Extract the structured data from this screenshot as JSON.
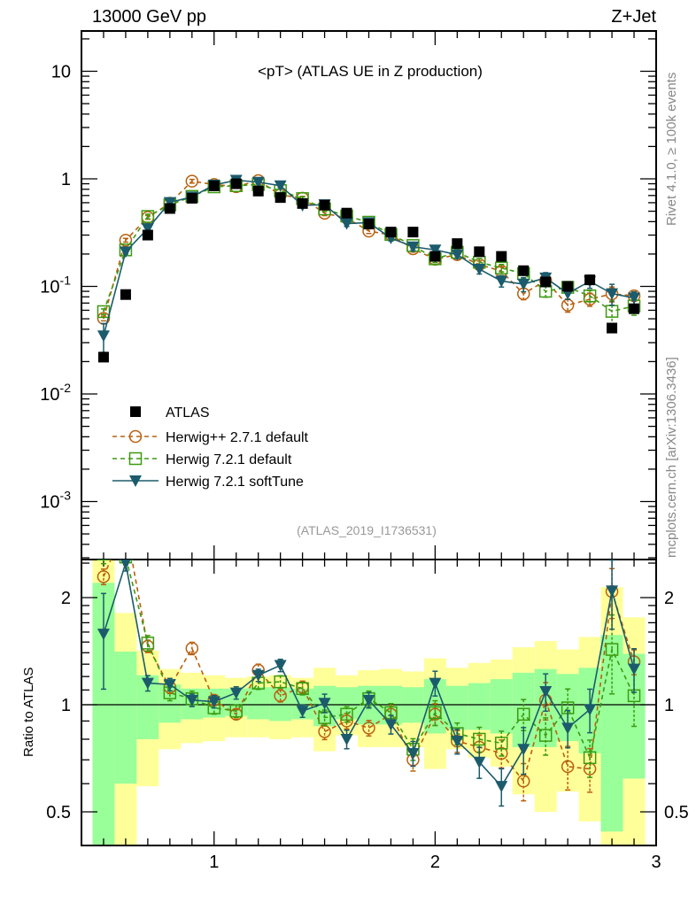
{
  "header": {
    "left": "13000 GeV pp",
    "right": "Z+Jet"
  },
  "side_labels": {
    "rivet": "Rivet 4.1.0, ≥ 100k events",
    "mcplots": "mcplots.cern.ch [arXiv:1306.3436]"
  },
  "colors": {
    "atlas": "#000000",
    "herwigpp": "#b8600f",
    "herwig721": "#3c9a10",
    "softtune": "#1b5b6c",
    "band_total": "#ffff99",
    "band_stat": "#99ff99"
  },
  "chart_data": {
    "type": "scatter",
    "title": "<pT> (ATLAS UE in Z production)",
    "analysis_tag": "(ATLAS_2019_I1736531)",
    "xlabel": "",
    "ylabel": "",
    "ratio_ylabel": "Ratio to ATLAS",
    "xlim": [
      0.4,
      3.0
    ],
    "ylim": [
      0.0003,
      24
    ],
    "ratio_ylim": [
      0.4,
      2.56
    ],
    "yscale": "log",
    "x_ticks": [
      "1",
      "2",
      "3"
    ],
    "y_ticks": [
      "10",
      "1",
      "10^-1",
      "10^-2",
      "10^-3"
    ],
    "ratio_ticks": [
      "2",
      "1",
      "0.5"
    ],
    "legend_position": "middle-left",
    "x": [
      0.5,
      0.6,
      0.7,
      0.8,
      0.9,
      1.0,
      1.1,
      1.2,
      1.3,
      1.4,
      1.5,
      1.6,
      1.7,
      1.8,
      1.9,
      2.0,
      2.1,
      2.2,
      2.3,
      2.4,
      2.5,
      2.6,
      2.7,
      2.8,
      2.9
    ],
    "atlas": [
      0.022,
      0.084,
      0.3,
      0.53,
      0.66,
      0.86,
      0.9,
      0.77,
      0.67,
      0.59,
      0.57,
      0.48,
      0.38,
      0.32,
      0.32,
      0.19,
      0.25,
      0.21,
      0.19,
      0.14,
      0.11,
      0.1,
      0.115,
      0.041,
      0.062
    ],
    "band_stat": {
      "lo": [
        0.3,
        0.6,
        0.8,
        0.89,
        0.91,
        0.92,
        0.93,
        0.91,
        0.9,
        0.91,
        0.87,
        0.91,
        0.88,
        0.88,
        0.89,
        0.83,
        0.85,
        0.85,
        0.83,
        0.76,
        0.76,
        0.79,
        0.73,
        0.44,
        0.62
      ],
      "hi": [
        2.2,
        1.41,
        1.21,
        1.14,
        1.11,
        1.11,
        1.11,
        1.12,
        1.12,
        1.11,
        1.13,
        1.12,
        1.13,
        1.13,
        1.12,
        1.18,
        1.13,
        1.15,
        1.18,
        1.23,
        1.26,
        1.22,
        1.27,
        1.57,
        1.39
      ]
    },
    "band_total": {
      "lo": [
        0.3,
        0.3,
        0.59,
        0.75,
        0.78,
        0.79,
        0.81,
        0.81,
        0.8,
        0.81,
        0.74,
        0.82,
        0.76,
        0.76,
        0.76,
        0.66,
        0.75,
        0.71,
        0.67,
        0.56,
        0.5,
        0.57,
        0.47,
        0.3,
        0.3
      ],
      "hi": [
        3.0,
        1.81,
        1.42,
        1.26,
        1.23,
        1.21,
        1.19,
        1.2,
        1.21,
        1.19,
        1.27,
        1.21,
        1.25,
        1.26,
        1.24,
        1.35,
        1.27,
        1.31,
        1.34,
        1.45,
        1.51,
        1.43,
        1.55,
        2.14,
        1.76
      ]
    },
    "series": [
      {
        "key": "herwigpp",
        "name": "Herwig++ 2.7.1 default",
        "marker": "circle",
        "dashed": true,
        "ratio": [
          2.29,
          3.2,
          1.46,
          1.12,
          1.44,
          1.03,
          0.94,
          1.25,
          1.06,
          1.12,
          0.84,
          0.9,
          0.86,
          0.94,
          0.7,
          0.94,
          0.79,
          0.76,
          0.73,
          0.61,
          1.03,
          0.67,
          0.66,
          2.08,
          1.32
        ],
        "rel_err": [
          0.05,
          0.04,
          0.04,
          0.04,
          0.04,
          0.03,
          0.03,
          0.04,
          0.04,
          0.04,
          0.05,
          0.05,
          0.05,
          0.06,
          0.07,
          0.07,
          0.07,
          0.08,
          0.09,
          0.12,
          0.12,
          0.14,
          0.14,
          0.16,
          0.08
        ]
      },
      {
        "key": "herwig721",
        "name": "Herwig 7.2.1 default",
        "marker": "square",
        "dashed": true,
        "ratio": [
          2.65,
          2.6,
          1.49,
          1.08,
          1.04,
          0.98,
          0.96,
          1.15,
          1.16,
          1.11,
          0.92,
          0.94,
          1.04,
          0.95,
          0.75,
          0.95,
          0.83,
          0.8,
          0.78,
          0.94,
          0.82,
          0.98,
          0.71,
          1.43,
          1.06
        ],
        "rel_err": [
          0.06,
          0.05,
          0.05,
          0.05,
          0.05,
          0.04,
          0.04,
          0.04,
          0.04,
          0.04,
          0.05,
          0.05,
          0.05,
          0.06,
          0.07,
          0.08,
          0.07,
          0.08,
          0.08,
          0.1,
          0.12,
          0.13,
          0.12,
          0.25,
          0.18
        ]
      },
      {
        "key": "softtune",
        "name": "Herwig 7.2.1 softTune",
        "marker": "triangle-down",
        "dashed": false,
        "ratio": [
          1.58,
          2.5,
          1.15,
          1.14,
          1.03,
          1.02,
          1.08,
          1.21,
          1.29,
          0.96,
          1.01,
          0.8,
          1.03,
          0.88,
          0.73,
          1.15,
          0.79,
          0.69,
          0.59,
          0.75,
          1.09,
          0.86,
          0.97,
          2.09,
          1.26
        ],
        "rel_err": [
          0.3,
          0.05,
          0.05,
          0.04,
          0.04,
          0.04,
          0.04,
          0.04,
          0.04,
          0.04,
          0.06,
          0.06,
          0.05,
          0.06,
          0.08,
          0.08,
          0.08,
          0.1,
          0.12,
          0.15,
          0.12,
          0.12,
          0.14,
          0.22,
          0.14
        ]
      }
    ],
    "atlas_label": "ATLAS"
  }
}
